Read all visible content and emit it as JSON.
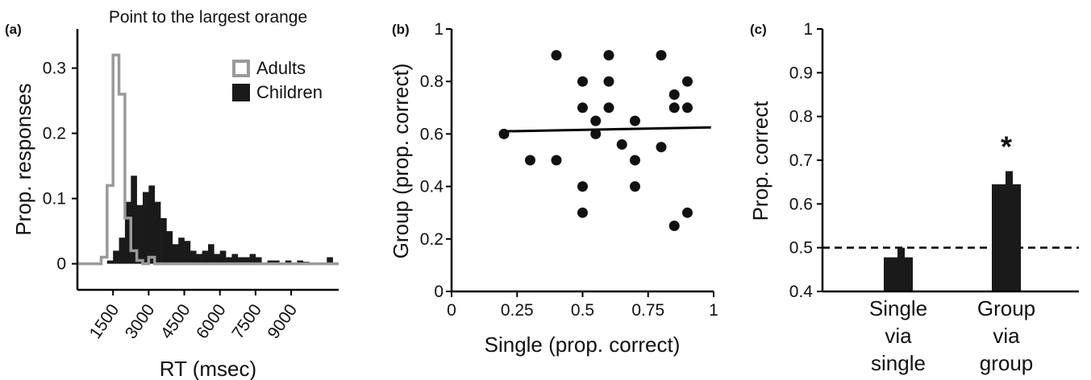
{
  "chart_data": [
    {
      "type": "bar",
      "panel": "(a)",
      "title": "Point to the largest orange",
      "xlabel": "RT (msec)",
      "ylabel": "Prop. responses",
      "xlim": [
        0,
        11000
      ],
      "ylim": [
        -0.04,
        0.36
      ],
      "xticks": [
        "1500",
        "3000",
        "4500",
        "6000",
        "7500",
        "9000"
      ],
      "yticks": [
        "0",
        "0.1",
        "0.2",
        "0.3"
      ],
      "bin_width": 250,
      "series": [
        {
          "name": "Adults",
          "color": "#9a9a9a",
          "style": "outline",
          "bins": [
            {
              "x": 1000,
              "y": 0.01
            },
            {
              "x": 1250,
              "y": 0.12
            },
            {
              "x": 1500,
              "y": 0.32
            },
            {
              "x": 1750,
              "y": 0.26
            },
            {
              "x": 2000,
              "y": 0.07
            },
            {
              "x": 2250,
              "y": 0.02
            },
            {
              "x": 2500,
              "y": 0.005
            },
            {
              "x": 2750,
              "y": 0.0
            },
            {
              "x": 3000,
              "y": 0.01
            }
          ]
        },
        {
          "name": "Children",
          "color": "#1a1a1a",
          "style": "filled",
          "bins": [
            {
              "x": 1250,
              "y": 0.005
            },
            {
              "x": 1500,
              "y": 0.02
            },
            {
              "x": 1750,
              "y": 0.04
            },
            {
              "x": 2000,
              "y": 0.095
            },
            {
              "x": 2250,
              "y": 0.135
            },
            {
              "x": 2500,
              "y": 0.09
            },
            {
              "x": 2750,
              "y": 0.11
            },
            {
              "x": 3000,
              "y": 0.12
            },
            {
              "x": 3250,
              "y": 0.095
            },
            {
              "x": 3500,
              "y": 0.07
            },
            {
              "x": 3750,
              "y": 0.05
            },
            {
              "x": 4000,
              "y": 0.03
            },
            {
              "x": 4250,
              "y": 0.04
            },
            {
              "x": 4500,
              "y": 0.035
            },
            {
              "x": 4750,
              "y": 0.02
            },
            {
              "x": 5000,
              "y": 0.015
            },
            {
              "x": 5250,
              "y": 0.02
            },
            {
              "x": 5500,
              "y": 0.03
            },
            {
              "x": 5750,
              "y": 0.015
            },
            {
              "x": 6000,
              "y": 0.02
            },
            {
              "x": 6250,
              "y": 0.01
            },
            {
              "x": 6500,
              "y": 0.015
            },
            {
              "x": 6750,
              "y": 0.01
            },
            {
              "x": 7000,
              "y": 0.01
            },
            {
              "x": 7250,
              "y": 0.015
            },
            {
              "x": 7500,
              "y": 0.01
            },
            {
              "x": 8000,
              "y": 0.005
            },
            {
              "x": 8250,
              "y": 0.005
            },
            {
              "x": 8750,
              "y": 0.005
            },
            {
              "x": 9250,
              "y": 0.005
            },
            {
              "x": 9500,
              "y": 0.003
            },
            {
              "x": 10500,
              "y": 0.01
            }
          ]
        }
      ],
      "legend": "top-right"
    },
    {
      "type": "scatter",
      "panel": "(b)",
      "xlabel": "Single (prop. correct)",
      "ylabel": "Group (prop. correct)",
      "xlim": [
        0,
        1
      ],
      "ylim": [
        0,
        1
      ],
      "xticks": [
        "0",
        "0.25",
        "0.5",
        "0.75",
        "1"
      ],
      "yticks": [
        "0",
        "0.2",
        "0.4",
        "0.6",
        "0.8",
        "1"
      ],
      "points": [
        {
          "x": 0.2,
          "y": 0.6
        },
        {
          "x": 0.3,
          "y": 0.5
        },
        {
          "x": 0.4,
          "y": 0.5
        },
        {
          "x": 0.4,
          "y": 0.9
        },
        {
          "x": 0.5,
          "y": 0.8
        },
        {
          "x": 0.5,
          "y": 0.7
        },
        {
          "x": 0.5,
          "y": 0.4
        },
        {
          "x": 0.5,
          "y": 0.3
        },
        {
          "x": 0.55,
          "y": 0.65
        },
        {
          "x": 0.55,
          "y": 0.6
        },
        {
          "x": 0.6,
          "y": 0.9
        },
        {
          "x": 0.6,
          "y": 0.8
        },
        {
          "x": 0.6,
          "y": 0.7
        },
        {
          "x": 0.65,
          "y": 0.56
        },
        {
          "x": 0.7,
          "y": 0.65
        },
        {
          "x": 0.7,
          "y": 0.5
        },
        {
          "x": 0.7,
          "y": 0.4
        },
        {
          "x": 0.8,
          "y": 0.9
        },
        {
          "x": 0.8,
          "y": 0.55
        },
        {
          "x": 0.85,
          "y": 0.75
        },
        {
          "x": 0.85,
          "y": 0.7
        },
        {
          "x": 0.85,
          "y": 0.25
        },
        {
          "x": 0.9,
          "y": 0.8
        },
        {
          "x": 0.9,
          "y": 0.7
        },
        {
          "x": 0.9,
          "y": 0.3
        }
      ],
      "fit_line": {
        "x": [
          0.2,
          0.99
        ],
        "y": [
          0.61,
          0.625
        ]
      }
    },
    {
      "type": "bar",
      "panel": "(c)",
      "ylabel": "Prop. correct",
      "ylim": [
        0.4,
        1.0
      ],
      "yticks": [
        "0.4",
        "0.5",
        "0.6",
        "0.7",
        "0.8",
        "0.9",
        "1"
      ],
      "categories": [
        [
          "Single",
          "via",
          "single"
        ],
        [
          "Group",
          "via",
          "group"
        ]
      ],
      "values": [
        0.478,
        0.645
      ],
      "errors": [
        0.022,
        0.03
      ],
      "reference_line": 0.5,
      "annotations": [
        {
          "category": 1,
          "text": "*"
        }
      ]
    }
  ]
}
